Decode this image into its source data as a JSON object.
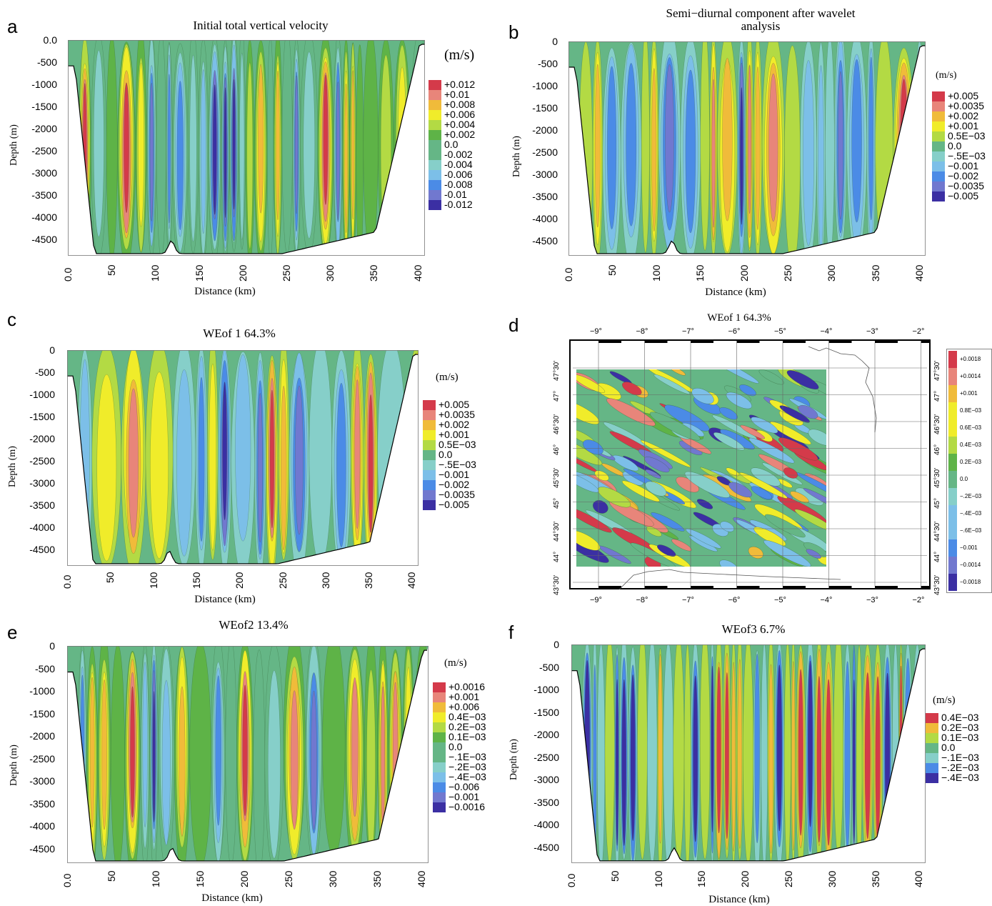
{
  "palette": [
    "#d43a4a",
    "#e8857a",
    "#f0bb3a",
    "#f0ec2a",
    "#b3da44",
    "#5eb347",
    "#65b686",
    "#86cfc9",
    "#7cbfe8",
    "#4b8be6",
    "#7178cf",
    "#3b2fa3"
  ],
  "panels": [
    {
      "letter": "a",
      "title": "Initial total vertical velocity",
      "unit": "(m/s)",
      "xlabel": "Distance (km)",
      "ylabel": "Depth (m)",
      "yticks": [
        "0.0",
        "-500",
        "-1000",
        "-1500",
        "-2000",
        "-2500",
        "-3000",
        "-3500",
        "-4000",
        "-4500"
      ],
      "xticks": [
        "0.0",
        "50",
        "100",
        "150",
        "200",
        "250",
        "300",
        "350",
        "400"
      ],
      "legend": [
        "+0.012",
        "+0.01",
        "+0.008",
        "+0.006",
        "+0.004",
        "+0.002",
        "0.0",
        "-0.002",
        "-0.004",
        "-0.006",
        "-0.008",
        "-0.01",
        "-0.012"
      ]
    },
    {
      "letter": "b",
      "title": "Semi−diurnal component after wavelet analysis",
      "unit": "(m/s)",
      "xlabel": "Distance (km)",
      "ylabel": "Depth (m)",
      "yticks": [
        "0",
        "-500",
        "-1000",
        "-1500",
        "-2000",
        "-2500",
        "-3000",
        "-3500",
        "-4000",
        "-4500"
      ],
      "xticks": [
        "0.0",
        "50",
        "100",
        "150",
        "200",
        "250",
        "300",
        "350",
        "400"
      ],
      "legend": [
        "+0.005",
        "+0.0035",
        "+0.002",
        "+0.001",
        "0.5E−03",
        "0.0",
        "−.5E−03",
        "−0.001",
        "−0.002",
        "−0.0035",
        "−0.005"
      ]
    },
    {
      "letter": "c",
      "title": "WEof 1 64.3%",
      "unit": "(m/s)",
      "xlabel": "Distance (km)",
      "ylabel": "Depth (m)",
      "yticks": [
        "0",
        "-500",
        "-1000",
        "-1500",
        "-2000",
        "-2500",
        "-3000",
        "-3500",
        "-4000",
        "-4500"
      ],
      "xticks": [
        "0.0",
        "50",
        "100",
        "150",
        "200",
        "250",
        "300",
        "350",
        "400"
      ],
      "legend": [
        "+0.005",
        "+0.0035",
        "+0.002",
        "+0.001",
        "0.5E−03",
        "0.0",
        "−.5E−03",
        "−0.001",
        "−0.002",
        "−0.0035",
        "−0.005"
      ]
    },
    {
      "letter": "d",
      "title": "WEof 1 64.3%",
      "lon_ticks": [
        "−9°",
        "−8°",
        "−7°",
        "−6°",
        "−5°",
        "−4°",
        "−3°",
        "−2°"
      ],
      "lat_ticks": [
        "47°30'",
        "47°",
        "46°30'",
        "46°",
        "45°30'",
        "45°",
        "44°30'",
        "44°",
        "43°30'"
      ],
      "legend": [
        "+0.0018",
        "+0.0014",
        "+0.001",
        "0.8E−03",
        "0.6E−03",
        "0.4E−03",
        "0.2E−03",
        "0.0",
        "−.2E−03",
        "−.4E−03",
        "−.6E−03",
        "−0.001",
        "−0.0014",
        "−0.0018"
      ]
    },
    {
      "letter": "e",
      "title": "WEof2 13.4%",
      "unit": "(m/s)",
      "xlabel": "Distance (km)",
      "ylabel": "Depth (m)",
      "yticks": [
        "0",
        "-500",
        "-1000",
        "-1500",
        "-2000",
        "-2500",
        "-3000",
        "-3500",
        "-4000",
        "-4500"
      ],
      "xticks": [
        "0.0",
        "50",
        "100",
        "150",
        "200",
        "250",
        "300",
        "350",
        "400"
      ],
      "legend": [
        "+0.0016",
        "+0.001",
        "+0.006",
        "0.4E−03",
        "0.2E−03",
        "0.1E−03",
        "0.0",
        "−.1E−03",
        "−.2E−03",
        "−.4E−03",
        "−0.006",
        "−0.001",
        "−0.0016"
      ]
    },
    {
      "letter": "f",
      "title": "WEof3 6.7%",
      "unit": "(m/s)",
      "xlabel": "Distance (km)",
      "ylabel": "Depth (m)",
      "yticks": [
        "0",
        "-500",
        "-1000",
        "-1500",
        "-2000",
        "-2500",
        "-3000",
        "-3500",
        "-4000",
        "-4500"
      ],
      "xticks": [
        "0.0",
        "50",
        "100",
        "150",
        "200",
        "250",
        "300",
        "350",
        "400"
      ],
      "legend": [
        "0.4E−03",
        "0.2E−03",
        "0.1E−03",
        "0.0",
        "−.1E−03",
        "−.2E−03",
        "−.4E−03"
      ]
    }
  ]
}
